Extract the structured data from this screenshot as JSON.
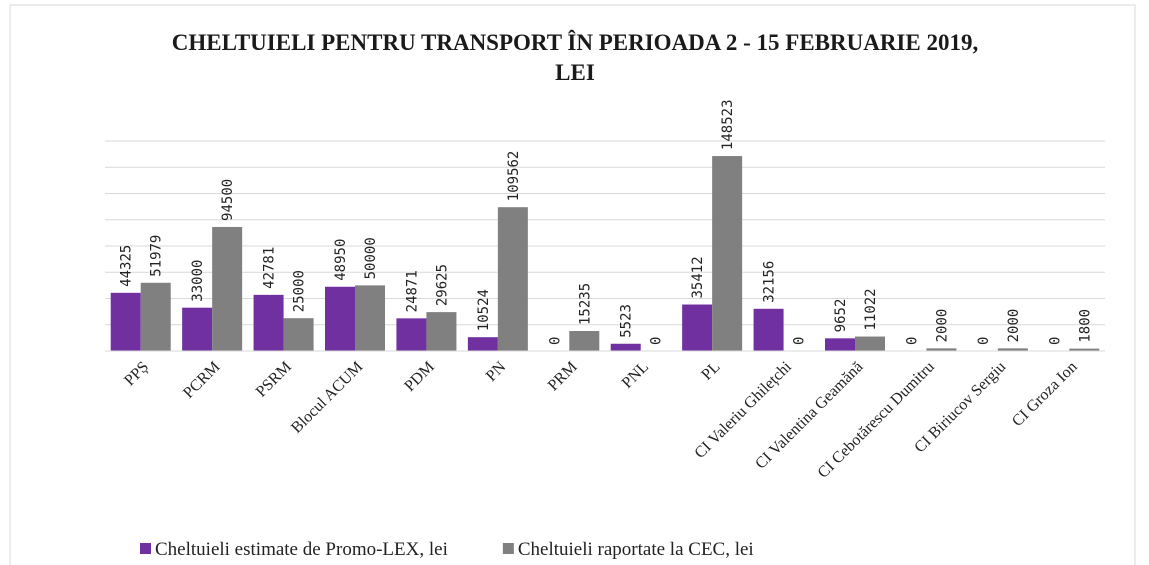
{
  "chart_data": {
    "type": "bar",
    "title": "CHELTUIELI PENTRU TRANSPORT ÎN PERIOADA 2 - 15 FEBRUARIE 2019, LEI",
    "categories": [
      "PPȘ",
      "PCRM",
      "PSRM",
      "Blocul ACUM",
      "PDM",
      "PN",
      "PRM",
      "PNL",
      "PL",
      "CI Valeriu Ghilețchi",
      "CI Valentina Geamănă",
      "CI Cebotărescu Dumitru",
      "CI Biriucov Sergiu",
      "CI Groza Ion"
    ],
    "series": [
      {
        "name": "Cheltuieli estimate de Promo-LEX, lei",
        "color": "#7030a0",
        "values": [
          44325,
          33000,
          42781,
          48950,
          24871,
          10524,
          0,
          5523,
          35412,
          32156,
          9652,
          0,
          0,
          0
        ]
      },
      {
        "name": "Cheltuieli raportate la CEC, lei",
        "color": "#808080",
        "values": [
          51979,
          94500,
          25000,
          50000,
          29625,
          109562,
          15235,
          0,
          148523,
          0,
          11022,
          2000,
          2000,
          1800
        ]
      }
    ],
    "ylim": [
      0,
      160000
    ],
    "yticks": [
      0,
      20000,
      40000,
      60000,
      80000,
      100000,
      120000,
      140000,
      160000
    ],
    "grid": true,
    "legend": "bottom"
  }
}
